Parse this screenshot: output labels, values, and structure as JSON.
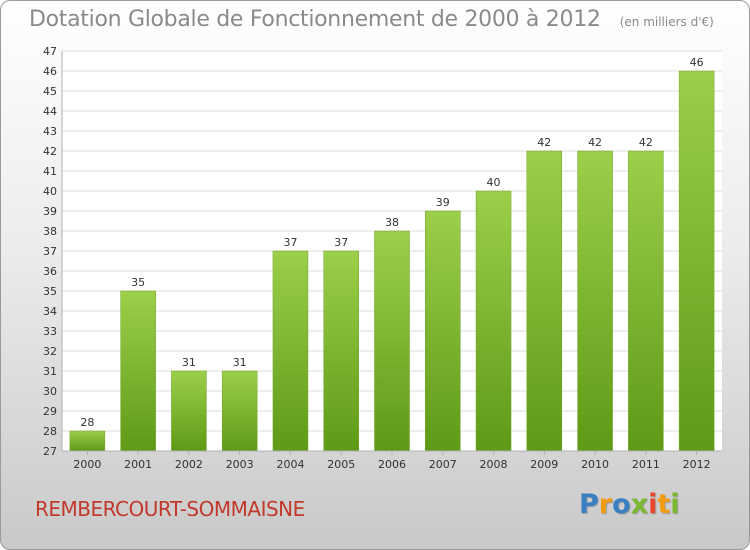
{
  "chart_data": {
    "type": "bar",
    "title": "Dotation Globale de Fonctionnement de 2000 à 2012",
    "subtitle": "(en milliers d'€)",
    "categories": [
      "2000",
      "2001",
      "2002",
      "2003",
      "2004",
      "2005",
      "2006",
      "2007",
      "2008",
      "2009",
      "2010",
      "2011",
      "2012"
    ],
    "values": [
      28,
      35,
      31,
      31,
      37,
      37,
      38,
      39,
      40,
      42,
      42,
      42,
      46
    ],
    "ylim": [
      27,
      47
    ],
    "yticks": [
      27,
      28,
      29,
      30,
      31,
      32,
      33,
      34,
      35,
      36,
      37,
      38,
      39,
      40,
      41,
      42,
      43,
      44,
      45,
      46,
      47
    ],
    "xlabel": "",
    "ylabel": "",
    "grid": true,
    "legend": "none",
    "bar_color_top": "#9ccf4a",
    "bar_color_bottom": "#5e9a17"
  },
  "footer": {
    "commune": "REMBERCOURT-SOMMAISNE",
    "logo_letters": [
      "P",
      "r",
      "o",
      "x",
      "i",
      "t",
      "i"
    ],
    "logo_colors": [
      "#3a7fc1",
      "#f39c12",
      "#3a7fc1",
      "#7cb82f",
      "#e8452c",
      "#f39c12",
      "#7cb82f"
    ]
  }
}
